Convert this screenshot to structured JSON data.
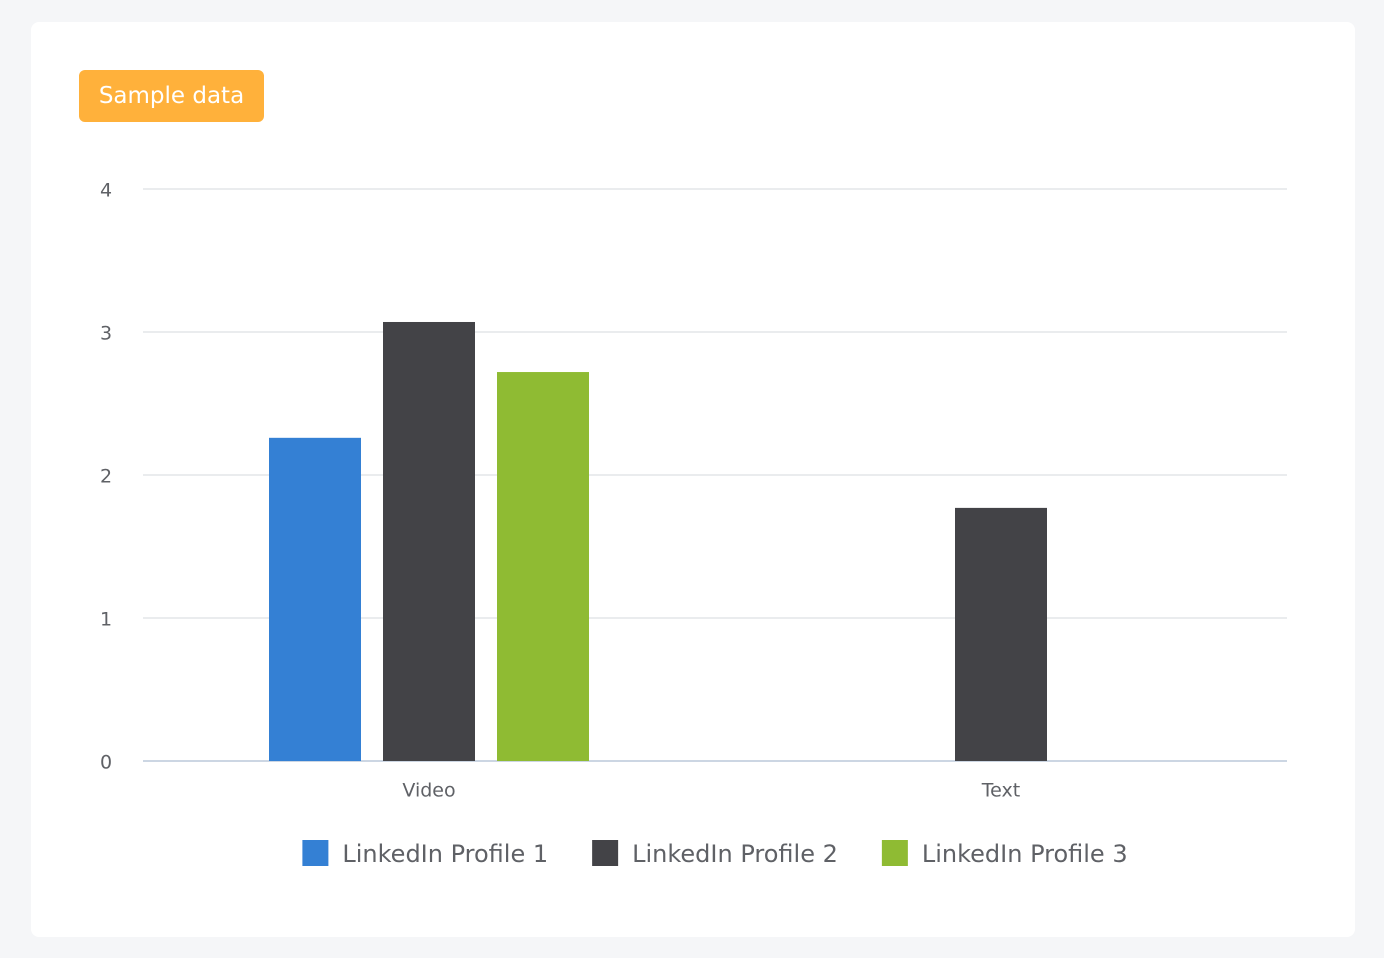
{
  "badge": "Sample data",
  "chart_data": {
    "type": "bar",
    "categories": [
      "Video",
      "Text"
    ],
    "series": [
      {
        "name": "LinkedIn Profile 1",
        "color": "#3480d4",
        "values": [
          2.26,
          null
        ]
      },
      {
        "name": "LinkedIn Profile 2",
        "color": "#434347",
        "values": [
          3.07,
          1.77
        ]
      },
      {
        "name": "LinkedIn Profile 3",
        "color": "#8fbb33",
        "values": [
          2.72,
          null
        ]
      }
    ],
    "ylim": [
      0,
      4
    ],
    "yticks": [
      0,
      1,
      2,
      3,
      4
    ],
    "grid": true,
    "legend": "bottom"
  }
}
